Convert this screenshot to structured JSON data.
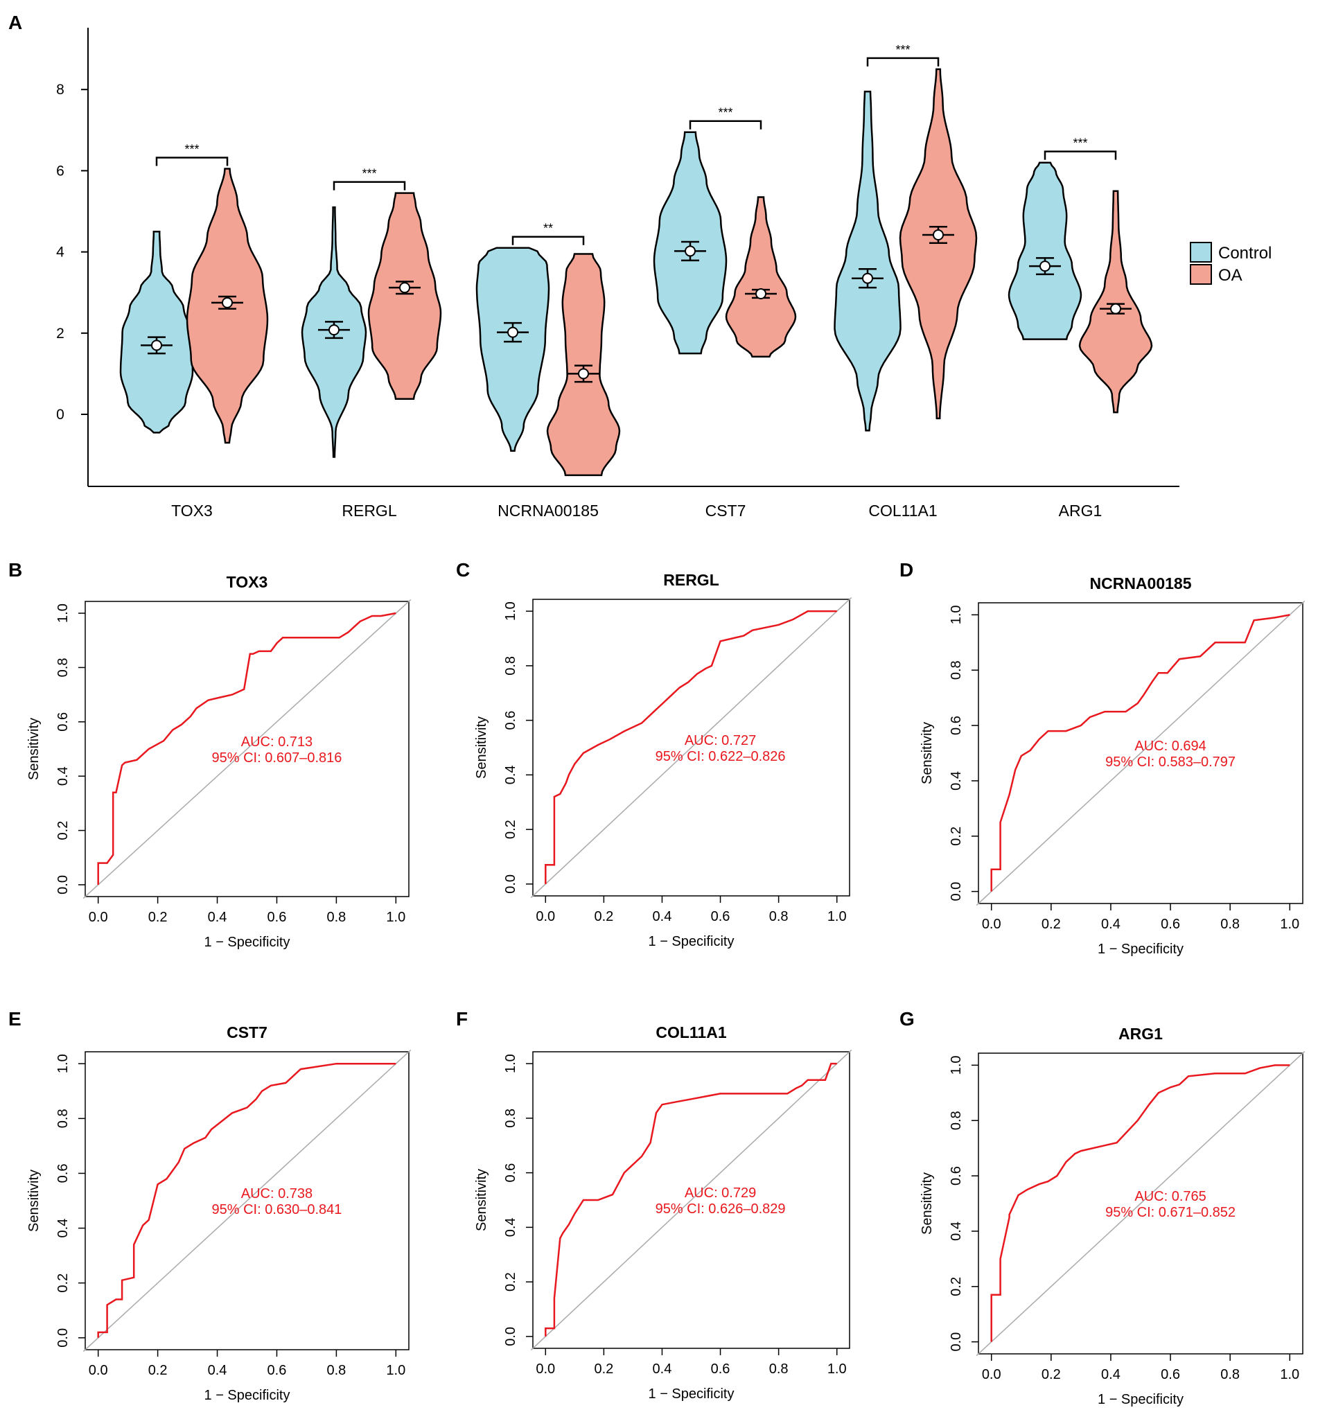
{
  "panel_letters": [
    "A",
    "B",
    "C",
    "D",
    "E",
    "F",
    "G"
  ],
  "colors": {
    "control": "#a8dde8",
    "oa": "#f2a393",
    "roc": "#e8181e",
    "diag": "#aaaaaa",
    "axis": "#000000"
  },
  "chart_data": [
    {
      "type": "violin",
      "panel": "A",
      "title": "",
      "xlabel": "",
      "ylabel": "",
      "ylim": [
        -1.8,
        9.5
      ],
      "yticks": [
        0,
        2,
        4,
        6,
        8
      ],
      "ytick_labels": [
        "0",
        "2",
        "4",
        "6",
        "8"
      ],
      "categories": [
        "TOX3",
        "RERGL",
        "NCRNA00185",
        "CST7",
        "COL11A1",
        "ARG1"
      ],
      "legend": {
        "position": "right",
        "entries": [
          "Control",
          "OA"
        ]
      },
      "series": [
        {
          "name": "Control",
          "min": [
            -0.45,
            -1.05,
            -0.9,
            1.5,
            -0.4,
            1.85
          ],
          "max": [
            4.5,
            5.1,
            4.1,
            6.95,
            7.95,
            6.2
          ],
          "mean": [
            1.7,
            2.08,
            2.02,
            4.02,
            3.35,
            3.65
          ],
          "err": [
            0.2,
            0.2,
            0.23,
            0.23,
            0.23,
            0.2
          ]
        },
        {
          "name": "OA",
          "min": [
            -0.7,
            0.38,
            -1.5,
            1.42,
            -0.1,
            0.05
          ],
          "max": [
            6.05,
            5.45,
            3.95,
            5.35,
            8.5,
            5.5
          ],
          "mean": [
            2.75,
            3.12,
            1.0,
            2.97,
            4.42,
            2.6
          ],
          "err": [
            0.15,
            0.15,
            0.2,
            0.1,
            0.2,
            0.12
          ]
        }
      ],
      "significance": [
        "***",
        "***",
        "**",
        "***",
        "***",
        "***"
      ]
    },
    {
      "type": "line",
      "panel": "B",
      "title": "TOX3",
      "xlabel": "1 − Specificity",
      "ylabel": "Sensitivity",
      "xlim": [
        0,
        1
      ],
      "ylim": [
        0,
        1
      ],
      "ticks": [
        "0.0",
        "0.2",
        "0.4",
        "0.6",
        "0.8",
        "1.0"
      ],
      "auc_label": "AUC: 0.713",
      "ci_label": "95% CI: 0.607–0.816",
      "x": [
        0,
        0,
        0.03,
        0.05,
        0.05,
        0.06,
        0.08,
        0.09,
        0.13,
        0.15,
        0.17,
        0.22,
        0.25,
        0.28,
        0.31,
        0.33,
        0.37,
        0.41,
        0.45,
        0.49,
        0.51,
        0.52,
        0.54,
        0.58,
        0.6,
        0.62,
        0.81,
        0.84,
        0.86,
        0.88,
        0.92,
        0.95,
        1
      ],
      "y": [
        0,
        0.08,
        0.08,
        0.11,
        0.34,
        0.34,
        0.44,
        0.45,
        0.46,
        0.48,
        0.5,
        0.53,
        0.57,
        0.59,
        0.62,
        0.65,
        0.68,
        0.69,
        0.7,
        0.72,
        0.85,
        0.85,
        0.86,
        0.86,
        0.89,
        0.91,
        0.91,
        0.93,
        0.95,
        0.97,
        0.99,
        0.99,
        1
      ]
    },
    {
      "type": "line",
      "panel": "C",
      "title": "RERGL",
      "xlabel": "1 − Specificity",
      "ylabel": "Sensitivity",
      "xlim": [
        0,
        1
      ],
      "ylim": [
        0,
        1
      ],
      "ticks": [
        "0.0",
        "0.2",
        "0.4",
        "0.6",
        "0.8",
        "1.0"
      ],
      "auc_label": "AUC: 0.727",
      "ci_label": "95% CI: 0.622–0.826",
      "x": [
        0,
        0,
        0.03,
        0.03,
        0.05,
        0.07,
        0.08,
        0.1,
        0.13,
        0.18,
        0.22,
        0.27,
        0.33,
        0.37,
        0.4,
        0.43,
        0.46,
        0.49,
        0.52,
        0.55,
        0.57,
        0.6,
        0.64,
        0.68,
        0.71,
        0.8,
        0.85,
        0.9,
        1
      ],
      "y": [
        0,
        0.07,
        0.07,
        0.32,
        0.33,
        0.37,
        0.4,
        0.44,
        0.48,
        0.51,
        0.53,
        0.56,
        0.59,
        0.63,
        0.66,
        0.69,
        0.72,
        0.74,
        0.77,
        0.79,
        0.8,
        0.89,
        0.9,
        0.91,
        0.93,
        0.95,
        0.97,
        1,
        1
      ]
    },
    {
      "type": "line",
      "panel": "D",
      "title": "NCRNA00185",
      "xlabel": "1 − Specificity",
      "ylabel": "Sensitivity",
      "xlim": [
        0,
        1
      ],
      "ylim": [
        0,
        1
      ],
      "ticks": [
        "0.0",
        "0.2",
        "0.4",
        "0.6",
        "0.8",
        "1.0"
      ],
      "auc_label": "AUC: 0.694",
      "ci_label": "95% CI: 0.583–0.797",
      "x": [
        0,
        0,
        0.03,
        0.03,
        0.06,
        0.08,
        0.1,
        0.13,
        0.16,
        0.19,
        0.25,
        0.3,
        0.33,
        0.38,
        0.45,
        0.49,
        0.51,
        0.54,
        0.56,
        0.59,
        0.63,
        0.7,
        0.75,
        0.85,
        0.88,
        0.95,
        1
      ],
      "y": [
        0,
        0.08,
        0.08,
        0.25,
        0.35,
        0.44,
        0.49,
        0.51,
        0.55,
        0.58,
        0.58,
        0.6,
        0.63,
        0.65,
        0.65,
        0.68,
        0.71,
        0.76,
        0.79,
        0.79,
        0.84,
        0.85,
        0.9,
        0.9,
        0.98,
        0.99,
        1
      ]
    },
    {
      "type": "line",
      "panel": "E",
      "title": "CST7",
      "xlabel": "1 − Specificity",
      "ylabel": "Sensitivity",
      "xlim": [
        0,
        1
      ],
      "ylim": [
        0,
        1
      ],
      "ticks": [
        "0.0",
        "0.2",
        "0.4",
        "0.6",
        "0.8",
        "1.0"
      ],
      "auc_label": "AUC: 0.738",
      "ci_label": "95% CI: 0.630–0.841",
      "x": [
        0,
        0,
        0.03,
        0.03,
        0.06,
        0.08,
        0.08,
        0.12,
        0.12,
        0.15,
        0.17,
        0.2,
        0.23,
        0.27,
        0.29,
        0.32,
        0.36,
        0.38,
        0.45,
        0.5,
        0.53,
        0.55,
        0.58,
        0.63,
        0.68,
        0.8,
        0.85,
        1
      ],
      "y": [
        0,
        0.02,
        0.02,
        0.12,
        0.14,
        0.14,
        0.21,
        0.22,
        0.34,
        0.41,
        0.43,
        0.56,
        0.58,
        0.64,
        0.69,
        0.71,
        0.73,
        0.76,
        0.82,
        0.84,
        0.87,
        0.9,
        0.92,
        0.93,
        0.98,
        1,
        1,
        1
      ]
    },
    {
      "type": "line",
      "panel": "F",
      "title": "COL11A1",
      "xlabel": "1 − Specificity",
      "ylabel": "Sensitivity",
      "xlim": [
        0,
        1
      ],
      "ylim": [
        0,
        1
      ],
      "ticks": [
        "0.0",
        "0.2",
        "0.4",
        "0.6",
        "0.8",
        "1.0"
      ],
      "auc_label": "AUC: 0.729",
      "ci_label": "95% CI: 0.626–0.829",
      "x": [
        0,
        0,
        0.03,
        0.03,
        0.05,
        0.06,
        0.08,
        0.1,
        0.13,
        0.18,
        0.23,
        0.27,
        0.29,
        0.33,
        0.36,
        0.38,
        0.4,
        0.45,
        0.5,
        0.6,
        0.68,
        0.83,
        0.86,
        0.88,
        0.9,
        0.96,
        0.98,
        1
      ],
      "y": [
        0,
        0.03,
        0.03,
        0.14,
        0.36,
        0.38,
        0.41,
        0.45,
        0.5,
        0.5,
        0.52,
        0.6,
        0.62,
        0.66,
        0.71,
        0.82,
        0.85,
        0.86,
        0.87,
        0.89,
        0.89,
        0.89,
        0.91,
        0.92,
        0.94,
        0.94,
        1,
        1
      ]
    },
    {
      "type": "line",
      "panel": "G",
      "title": "ARG1",
      "xlabel": "1 − Specificity",
      "ylabel": "Sensitivity",
      "xlim": [
        0,
        1
      ],
      "ylim": [
        0,
        1
      ],
      "ticks": [
        "0.0",
        "0.2",
        "0.4",
        "0.6",
        "0.8",
        "1.0"
      ],
      "auc_label": "AUC: 0.765",
      "ci_label": "95% CI: 0.671–0.852",
      "x": [
        0,
        0,
        0.03,
        0.03,
        0.06,
        0.06,
        0.09,
        0.12,
        0.16,
        0.19,
        0.22,
        0.25,
        0.28,
        0.3,
        0.38,
        0.42,
        0.49,
        0.53,
        0.56,
        0.6,
        0.63,
        0.66,
        0.75,
        0.85,
        0.9,
        0.95,
        1
      ],
      "y": [
        0,
        0.17,
        0.17,
        0.3,
        0.45,
        0.46,
        0.53,
        0.55,
        0.57,
        0.58,
        0.6,
        0.65,
        0.68,
        0.69,
        0.71,
        0.72,
        0.8,
        0.86,
        0.9,
        0.92,
        0.93,
        0.96,
        0.97,
        0.97,
        0.99,
        1,
        1
      ]
    }
  ]
}
